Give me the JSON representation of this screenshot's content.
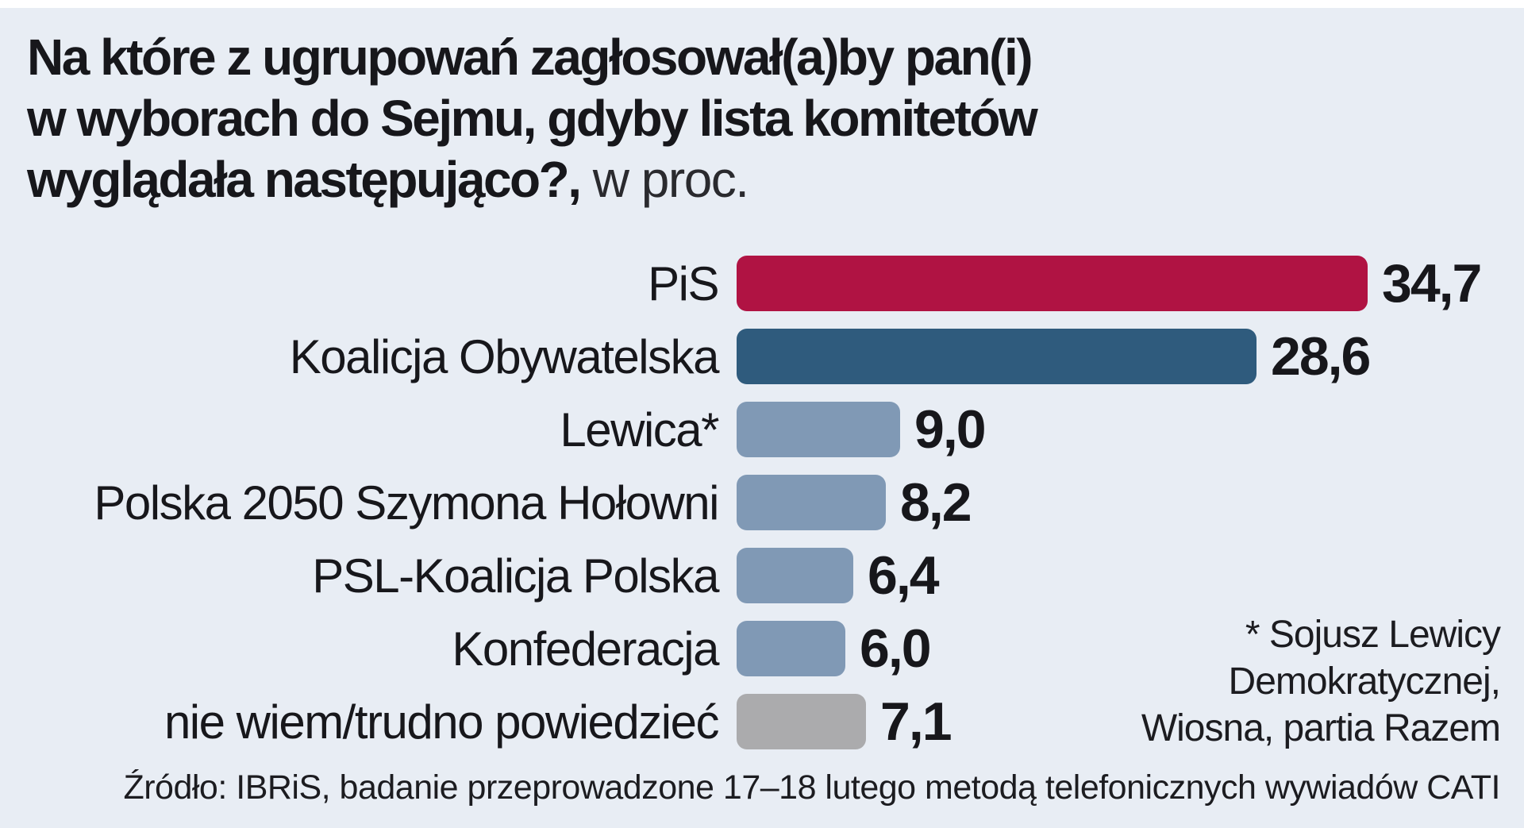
{
  "title": {
    "line1": "Na które z ugrupowań zagłosował(a)by pan(i)",
    "line2": "w wyborach do Sejmu, gdyby lista komitetów",
    "line3_bold": "wyglądała następująco?,",
    "line3_unit": " w proc."
  },
  "chart_data": {
    "type": "bar",
    "orientation": "horizontal",
    "title": "Na które z ugrupowań zagłosował(a)by pan(i) w wyborach do Sejmu, gdyby lista komitetów wyglądała następująco?, w proc.",
    "unit": "proc.",
    "categories": [
      "PiS",
      "Koalicja Obywatelska",
      "Lewica*",
      "Polska 2050 Szymona Hołowni",
      "PSL-Koalicja Polska",
      "Konfederacja",
      "nie wiem/trudno powiedzieć"
    ],
    "values": [
      34.7,
      28.6,
      9.0,
      8.2,
      6.4,
      6.0,
      7.1
    ],
    "value_labels": [
      "34,7",
      "28,6",
      "9,0",
      "8,2",
      "6,4",
      "6,0",
      "7,1"
    ],
    "bar_colors": [
      "#b01343",
      "#2f5b7d",
      "#8099b5",
      "#8099b5",
      "#8099b5",
      "#8099b5",
      "#ababad"
    ],
    "xlim": [
      0,
      36
    ],
    "grid": false,
    "legend": "none",
    "annotation": "* Sojusz Lewicy Demokratycznej, Wiosna, partia Razem",
    "source": "Źródło: IBRiS, badanie przeprowadzone 17–18 lutego metodą telefonicznych wywiadów CATI"
  },
  "footnote": {
    "lines": [
      "* Sojusz Lewicy",
      "Demokratycznej,",
      "Wiosna, partia Razem"
    ]
  },
  "source": {
    "text": "Źródło: IBRiS, badanie przeprowadzone 17–18 lutego metodą telefonicznych wywiadów CATI"
  },
  "colors": {
    "background": "#e8edf4",
    "pis_bar": "#b01343",
    "ko_bar": "#2f5b7d",
    "minor_bar": "#8099b5",
    "undecided_bar": "#ababad",
    "text": "#17171b"
  }
}
